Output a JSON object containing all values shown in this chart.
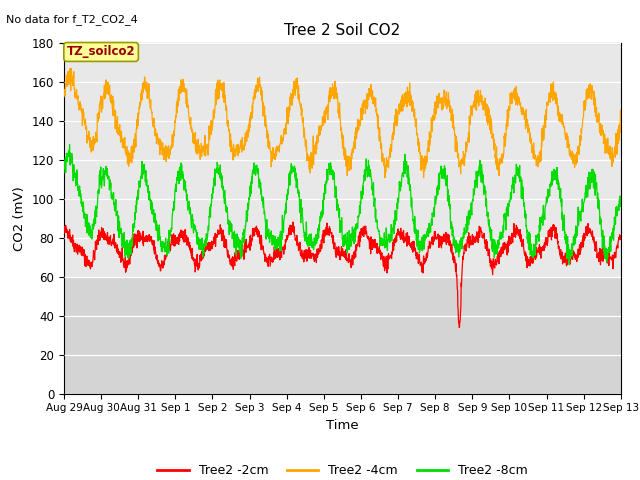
{
  "title": "Tree 2 Soil CO2",
  "top_left_text": "No data for f_T2_CO2_4",
  "ylabel": "CO2 (mV)",
  "xlabel": "Time",
  "annotation_box": "TZ_soilco2",
  "ylim": [
    0,
    180
  ],
  "yticks": [
    0,
    20,
    40,
    60,
    80,
    100,
    120,
    140,
    160,
    180
  ],
  "xlim_days": [
    0,
    15
  ],
  "xtick_labels": [
    "Aug 29",
    "Aug 30",
    "Aug 31",
    "Sep 1",
    "Sep 2",
    "Sep 3",
    "Sep 4",
    "Sep 5",
    "Sep 6",
    "Sep 7",
    "Sep 8",
    "Sep 9",
    "Sep 10",
    "Sep 11",
    "Sep 12",
    "Sep 13"
  ],
  "colors": {
    "red": "#FF0000",
    "orange": "#FFA500",
    "green": "#00DD00",
    "bg_light": "#e8e8e8",
    "bg_dark": "#d4d4d4",
    "annotation_bg": "#FFFF99",
    "annotation_border": "#999900",
    "annotation_text": "#990000"
  },
  "legend": [
    {
      "label": "Tree2 -2cm",
      "color": "#FF0000"
    },
    {
      "label": "Tree2 -4cm",
      "color": "#FFA500"
    },
    {
      "label": "Tree2 -8cm",
      "color": "#00DD00"
    }
  ],
  "n_points": 2000,
  "seed": 42,
  "spike_day": 10.65,
  "spike_val": 47
}
